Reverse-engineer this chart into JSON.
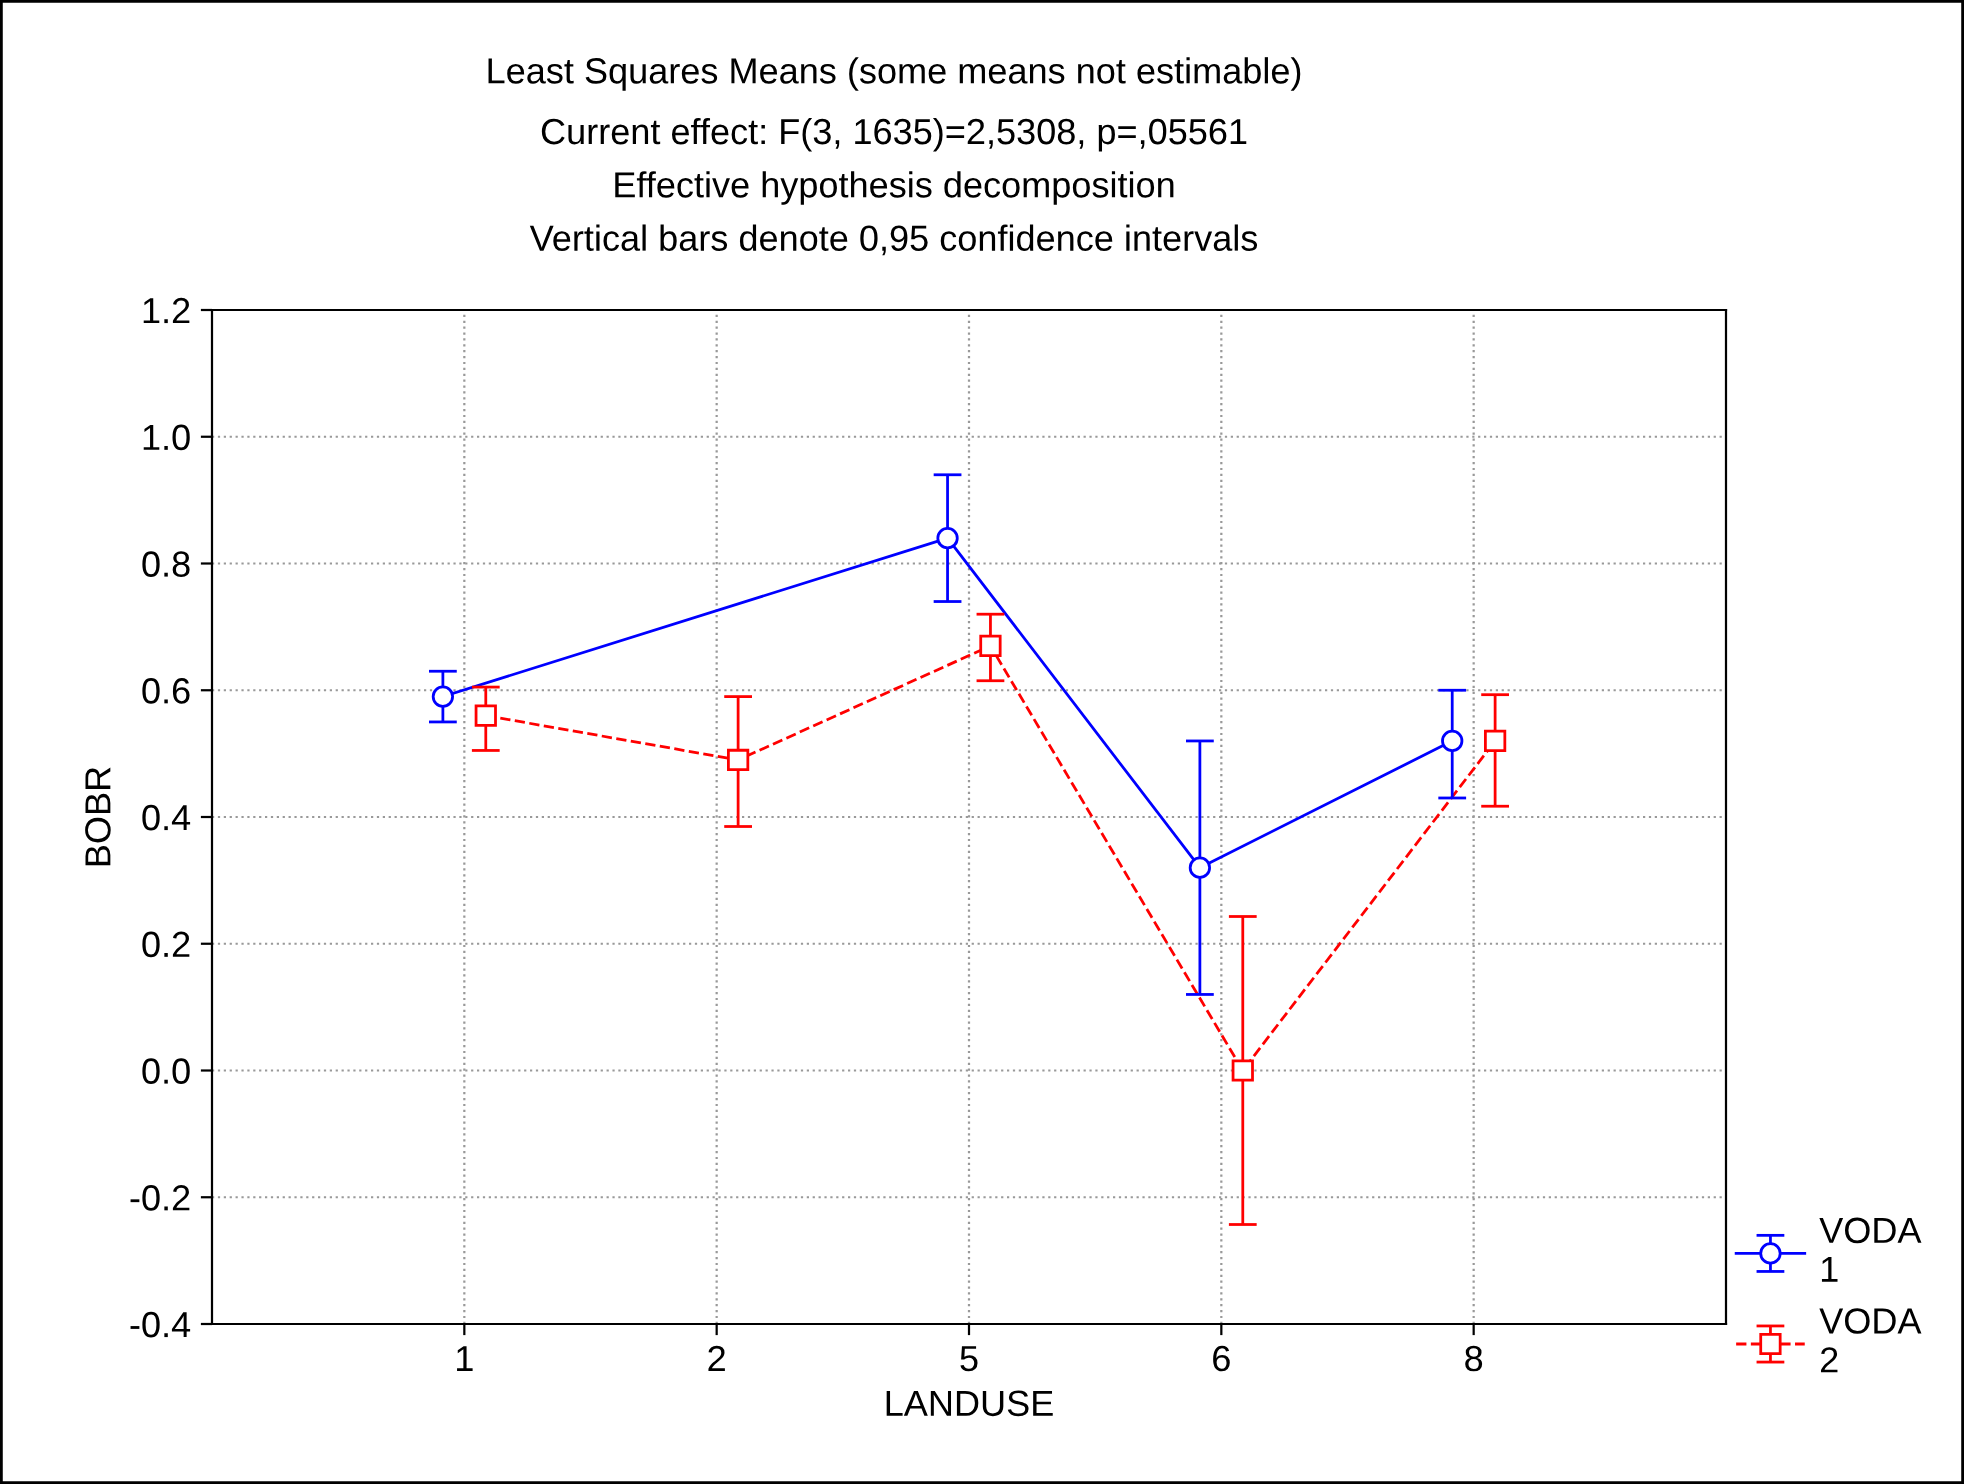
{
  "chart_data": {
    "type": "line",
    "title": "Least Squares Means (some means not estimable)",
    "subtitle": "Current effect: F(3, 1635)=2,5308, p=,05561\nEffective hypothesis decomposition\nVertical bars denote 0,95 confidence intervals",
    "xlabel": "LANDUSE",
    "ylabel": "BOBR",
    "categories": [
      "1",
      "2",
      "5",
      "6",
      "8"
    ],
    "series": [
      {
        "name": "VODA\n1",
        "color": "#0000ff",
        "marker": "circle",
        "line_style": "solid",
        "values": [
          0.59,
          null,
          0.84,
          0.32,
          0.52
        ],
        "errors": [
          [
            0.55,
            0.63
          ],
          null,
          [
            0.74,
            0.94
          ],
          [
            0.12,
            0.52
          ],
          [
            0.43,
            0.6
          ]
        ]
      },
      {
        "name": "VODA\n2",
        "color": "#ff0000",
        "marker": "square",
        "line_style": "dashed",
        "values": [
          0.56,
          0.49,
          0.67,
          0.0,
          0.52
        ],
        "errors": [
          [
            0.505,
            0.605
          ],
          [
            0.385,
            0.59
          ],
          [
            0.615,
            0.72
          ],
          [
            -0.243,
            0.243
          ],
          [
            0.417,
            0.593
          ]
        ]
      }
    ],
    "ylim": [
      -0.4,
      1.2
    ],
    "yticks": [
      {
        "value": -0.4,
        "label": "-0.4"
      },
      {
        "value": -0.2,
        "label": "-0.2"
      },
      {
        "value": 0.0,
        "label": "0.0"
      },
      {
        "value": 0.2,
        "label": "0.2"
      },
      {
        "value": 0.4,
        "label": "0.4"
      },
      {
        "value": 0.6,
        "label": "0.6"
      },
      {
        "value": 0.8,
        "label": "0.8"
      },
      {
        "value": 1.0,
        "label": "1.0"
      },
      {
        "value": 1.2,
        "label": "1.2"
      }
    ],
    "grid": true,
    "legend": "bottom right"
  }
}
